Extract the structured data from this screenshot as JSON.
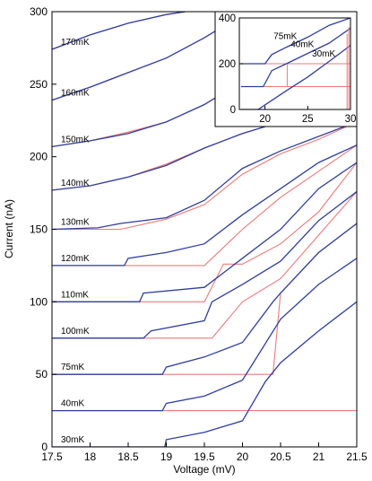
{
  "chart_data": [
    {
      "type": "line",
      "title": "",
      "xlabel": "Voltage (mV)",
      "ylabel": "Current (nA)",
      "xlim": [
        17.5,
        21.5
      ],
      "ylim": [
        0,
        300
      ],
      "x_ticks": [
        "17.5",
        "18",
        "18.5",
        "19",
        "19.5",
        "20",
        "20.5",
        "21",
        "21.5"
      ],
      "y_ticks": [
        "0",
        "50",
        "100",
        "150",
        "200",
        "250",
        "300"
      ],
      "grid": false,
      "legend": "none",
      "colors": {
        "sweep_up": "#2e3ea0",
        "sweep_down": "#f07878"
      },
      "curve_labels": [
        "170mK",
        "160mK",
        "150mK",
        "140mK",
        "130mK",
        "120mK",
        "110mK",
        "100mK",
        "75mK",
        "40mK",
        "30mK"
      ],
      "series": [
        {
          "label": "170mK",
          "x": [
            17.5,
            18.0,
            18.5,
            19.0,
            19.25
          ],
          "blue": [
            274,
            284,
            292,
            298,
            300
          ],
          "red": [
            274,
            284,
            292,
            298,
            300
          ]
        },
        {
          "label": "160mK",
          "x": [
            17.5,
            18.0,
            18.5,
            19.0,
            19.5,
            20.0,
            20.05
          ],
          "blue": [
            239,
            248,
            258,
            268,
            282,
            298,
            300
          ],
          "red": [
            239,
            248,
            258,
            268,
            282,
            298,
            300
          ]
        },
        {
          "label": "150mK",
          "x": [
            17.5,
            18.0,
            18.5,
            19.0,
            19.5,
            20.0,
            20.6
          ],
          "blue": [
            207,
            211,
            216,
            224,
            236,
            252,
            270
          ],
          "red": [
            207,
            211,
            217,
            224,
            236,
            252,
            270
          ]
        },
        {
          "label": "140mK",
          "x": [
            17.5,
            18.0,
            18.5,
            19.0,
            19.5,
            20.0,
            20.5,
            21.0
          ],
          "blue": [
            177,
            180,
            186,
            194,
            206,
            216,
            224,
            232
          ],
          "red": [
            177,
            180,
            186,
            195,
            206,
            216,
            224,
            232
          ]
        },
        {
          "label": "130mK",
          "x": [
            17.5,
            18.1,
            18.4,
            19.0,
            19.5,
            20.0,
            20.5,
            21.0,
            21.5
          ],
          "blue": [
            150,
            151,
            154,
            158,
            170,
            192,
            204,
            214,
            224
          ],
          "red": [
            150,
            150,
            150,
            157,
            167,
            188,
            202,
            212,
            224
          ]
        },
        {
          "label": "120mK",
          "x": [
            17.5,
            18.45,
            18.5,
            19.0,
            19.5,
            20.0,
            20.5,
            21.0,
            21.5
          ],
          "blue": [
            125,
            125,
            130,
            134,
            140,
            160,
            178,
            196,
            208
          ],
          "red": [
            125,
            125,
            125,
            125,
            125,
            150,
            172,
            190,
            208
          ]
        },
        {
          "label": "110mK",
          "x": [
            17.5,
            18.65,
            18.7,
            19.5,
            19.75,
            20.0,
            20.5,
            21.0,
            21.5
          ],
          "blue": [
            100,
            100,
            106,
            110,
            120,
            130,
            150,
            178,
            196
          ],
          "red": [
            100,
            100,
            100,
            100,
            126,
            126,
            140,
            162,
            196
          ]
        },
        {
          "label": "100mK",
          "x": [
            17.5,
            18.7,
            18.8,
            19.5,
            19.6,
            20.0,
            20.5,
            21.0,
            21.5
          ],
          "blue": [
            75,
            75,
            80,
            87,
            100,
            112,
            128,
            156,
            176
          ],
          "red": [
            75,
            75,
            75,
            75,
            75,
            100,
            116,
            146,
            176
          ]
        },
        {
          "label": "75mK",
          "x": [
            17.5,
            18.95,
            19.0,
            19.5,
            20.0,
            20.4,
            20.5,
            21.0,
            21.5
          ],
          "blue": [
            50,
            50,
            55,
            62,
            72,
            100,
            106,
            134,
            154
          ],
          "red": [
            50,
            50,
            50,
            50,
            50,
            50,
            106,
            134,
            154
          ]
        },
        {
          "label": "40mK",
          "x": [
            17.5,
            18.95,
            19.0,
            19.5,
            20.0,
            20.5,
            21.0,
            21.5
          ],
          "blue": [
            25,
            25,
            30,
            35,
            46,
            88,
            112,
            130
          ],
          "red": [
            25,
            25,
            25,
            25,
            25,
            25,
            25,
            25
          ]
        },
        {
          "label": "30mK",
          "x": [
            17.5,
            18.98,
            19.0,
            19.5,
            20.0,
            20.3,
            20.5,
            21.0,
            21.5
          ],
          "blue": [
            0,
            0,
            5,
            10,
            18,
            45,
            58,
            80,
            100
          ],
          "red": [
            0,
            0,
            0,
            0,
            0,
            0,
            0,
            0,
            0
          ]
        }
      ]
    },
    {
      "type": "line",
      "title": "",
      "xlabel": "",
      "ylabel": "",
      "xlim": [
        17,
        30
      ],
      "ylim": [
        0,
        400
      ],
      "x_ticks": [
        "20",
        "25",
        "30"
      ],
      "y_ticks": [
        "0",
        "200",
        "400"
      ],
      "curve_labels": [
        "75mK",
        "40mK",
        "30mK"
      ],
      "series": [
        {
          "label": "75mK",
          "x": [
            17.2,
            20.0,
            20.8,
            22.5,
            25.0,
            27.5,
            30.0
          ],
          "blue": [
            200,
            200,
            240,
            272,
            316,
            368,
            400
          ],
          "red": [
            200,
            200,
            200,
            200,
            200,
            200,
            200
          ]
        },
        {
          "label": "40mK",
          "x": [
            17.2,
            19.8,
            20.8,
            22.5,
            25.0,
            27.5,
            30.0
          ],
          "blue": [
            100,
            100,
            170,
            200,
            245,
            290,
            355
          ],
          "red": [
            100,
            100,
            100,
            100,
            100,
            100,
            100
          ]
        },
        {
          "label": "30mK",
          "x": [
            17.2,
            19.2,
            20.0,
            22.5,
            25.0,
            27.5,
            30.0
          ],
          "blue": [
            0,
            0,
            20,
            82,
            142,
            210,
            280
          ],
          "red": [
            0,
            0,
            0,
            0,
            0,
            0,
            0
          ]
        }
      ]
    }
  ]
}
